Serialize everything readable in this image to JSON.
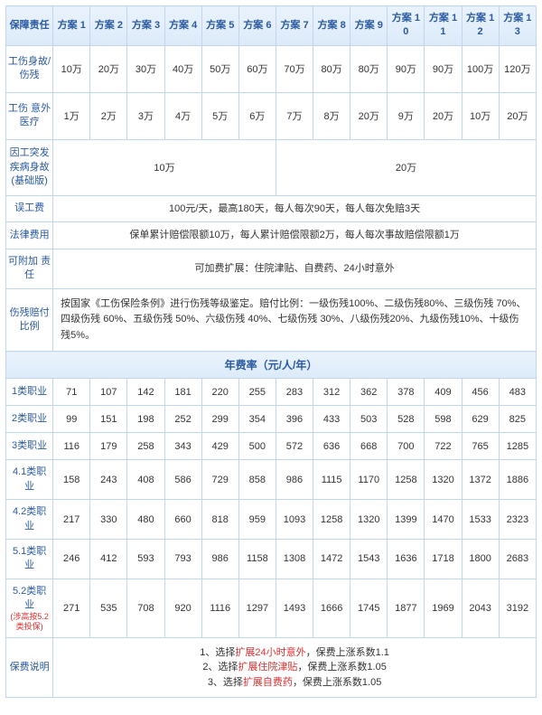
{
  "header": {
    "first": "保障责任",
    "plans": [
      "方案\n1",
      "方案\n2",
      "方案\n3",
      "方案\n4",
      "方案\n5",
      "方案\n6",
      "方案\n7",
      "方案\n8",
      "方案\n9",
      "方案\n10",
      "方案\n11",
      "方案\n12",
      "方案\n13"
    ]
  },
  "coverage": {
    "row1": {
      "label": "工伤身故/伤残",
      "vals": [
        "10万",
        "20万",
        "30万",
        "40万",
        "50万",
        "60万",
        "70万",
        "80万",
        "80万",
        "90万",
        "90万",
        "100万",
        "120万"
      ]
    },
    "row2": {
      "label": "工伤\n意外医疗",
      "vals": [
        "1万",
        "2万",
        "3万",
        "4万",
        "5万",
        "6万",
        "7万",
        "8万",
        "20万",
        "9万",
        "20万",
        "10万",
        "20万"
      ]
    },
    "row3": {
      "label": "因工突发疾病身故(基础版)",
      "left": "10万",
      "right": "20万"
    },
    "row4": {
      "label": "误工费",
      "text": "100元/天，最高180天，每人每次90天，每人每次免赔3天"
    },
    "row5": {
      "label": "法律费用",
      "text": "保单累计赔偿限额10万，每人累计赔偿限额2万，每人每次事故赔偿限额1万"
    },
    "row6": {
      "label": "可附加\n责任",
      "text": "可加费扩展：住院津贴、自费药、24小时意外"
    },
    "row7": {
      "label": "伤残赔付比例",
      "text": "按国家《工伤保险条例》进行伤残等级鉴定。赔付比例：一级伤残100%、二级伤残80%、三级伤残 70%、四级伤残 60%、五级伤残 50%、六级伤残 40%、七级伤残 30%、八级伤残20%、九级伤残10%、十级伤残5%。"
    }
  },
  "rates_header": "年费率（元/人/年）",
  "rates": [
    {
      "label": "1类职业",
      "vals": [
        "71",
        "107",
        "142",
        "181",
        "220",
        "255",
        "283",
        "312",
        "362",
        "378",
        "409",
        "456",
        "483"
      ]
    },
    {
      "label": "2类职业",
      "vals": [
        "99",
        "151",
        "198",
        "252",
        "299",
        "354",
        "396",
        "433",
        "503",
        "528",
        "598",
        "629",
        "825"
      ]
    },
    {
      "label": "3类职业",
      "vals": [
        "116",
        "179",
        "258",
        "343",
        "429",
        "500",
        "572",
        "636",
        "668",
        "700",
        "722",
        "765",
        "1285"
      ]
    },
    {
      "label": "4.1类职业",
      "vals": [
        "158",
        "243",
        "408",
        "586",
        "729",
        "858",
        "986",
        "1115",
        "1170",
        "1258",
        "1320",
        "1372",
        "1886"
      ]
    },
    {
      "label": "4.2类职业",
      "vals": [
        "217",
        "330",
        "480",
        "660",
        "818",
        "959",
        "1093",
        "1258",
        "1320",
        "1399",
        "1470",
        "1533",
        "2323"
      ]
    },
    {
      "label": "5.1类职业",
      "vals": [
        "246",
        "412",
        "593",
        "793",
        "986",
        "1158",
        "1308",
        "1472",
        "1543",
        "1636",
        "1718",
        "1800",
        "2683"
      ]
    },
    {
      "label": "5.2类职业",
      "sub": "(涉高按5.2类投保)",
      "vals": [
        "271",
        "535",
        "708",
        "920",
        "1116",
        "1297",
        "1493",
        "1666",
        "1745",
        "1877",
        "1969",
        "2043",
        "3192"
      ]
    }
  ],
  "notes": {
    "label": "保费说明",
    "lines": [
      {
        "pre": "1、选择",
        "red": "扩展24小时意外",
        "post": "，保费上涨系数1.1"
      },
      {
        "pre": "2、选择",
        "red": "扩展住院津贴",
        "post": "，保费上涨系数1.05"
      },
      {
        "pre": "3、选择",
        "red": "扩展自费药",
        "post": "，保费上涨系数1.05"
      }
    ]
  }
}
